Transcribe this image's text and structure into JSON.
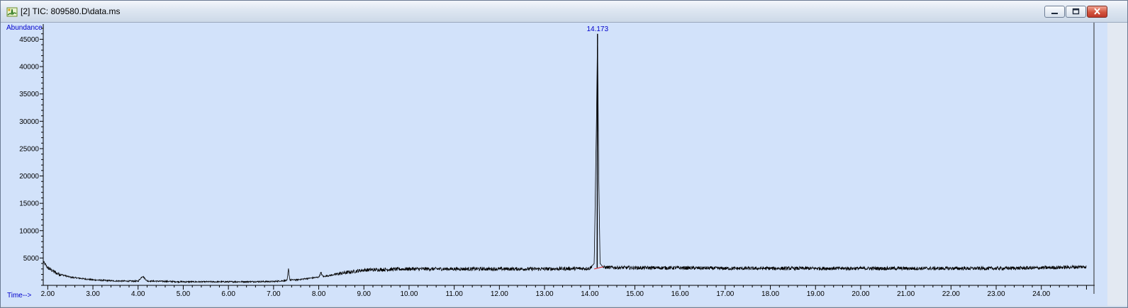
{
  "window": {
    "title": "[2] TIC: 809580.D\\data.ms",
    "icon": "chromatogram-icon",
    "controls": [
      "minimize-icon",
      "restore-icon",
      "close-icon"
    ]
  },
  "colors": {
    "plot_background": "#d2e2fa",
    "trace": "#000000",
    "axis_labels": "#0000cc",
    "peak_label": "#0000cc",
    "baseline_marker": "#e02020"
  },
  "chart_data": {
    "type": "line",
    "ylabel": "Abundance",
    "xlabel": "Time-->",
    "xlim": [
      1.9,
      25.15
    ],
    "ylim": [
      0,
      47000
    ],
    "x_ticks": [
      "2.00",
      "3.00",
      "4.00",
      "5.00",
      "6.00",
      "7.00",
      "8.00",
      "9.00",
      "10.00",
      "11.00",
      "12.00",
      "13.00",
      "14.00",
      "15.00",
      "16.00",
      "17.00",
      "18.00",
      "19.00",
      "20.00",
      "21.00",
      "22.00",
      "23.00",
      "24.00"
    ],
    "y_ticks": [
      "5000",
      "10000",
      "15000",
      "20000",
      "25000",
      "30000",
      "35000",
      "40000",
      "45000"
    ],
    "peak_annotations": [
      {
        "label": "14.173",
        "x": 14.173,
        "y": 46500
      }
    ],
    "series": [
      {
        "x": [
          1.9,
          2.0,
          2.2,
          2.5,
          3.0,
          3.5,
          4.0,
          4.1,
          4.2,
          5.0,
          6.0,
          7.0,
          7.3,
          7.33,
          7.36,
          7.5,
          8.0,
          8.05,
          8.1,
          8.5,
          9.0,
          10.0,
          11.0,
          12.0,
          13.0,
          14.0,
          14.1,
          14.15,
          14.173,
          14.2,
          14.23,
          14.3,
          15.0,
          16.0,
          17.0,
          18.0,
          19.0,
          20.0,
          21.0,
          22.0,
          23.0,
          24.0,
          25.0
        ],
        "y": [
          4300,
          3200,
          2200,
          1500,
          1000,
          800,
          750,
          1700,
          800,
          650,
          650,
          700,
          900,
          2900,
          1000,
          1000,
          1500,
          2200,
          1600,
          2200,
          2800,
          3000,
          3000,
          3000,
          3000,
          3100,
          4000,
          30000,
          46000,
          20000,
          4000,
          3300,
          3200,
          3200,
          3100,
          3100,
          3100,
          3100,
          3100,
          3100,
          3100,
          3200,
          3400
        ]
      }
    ]
  }
}
